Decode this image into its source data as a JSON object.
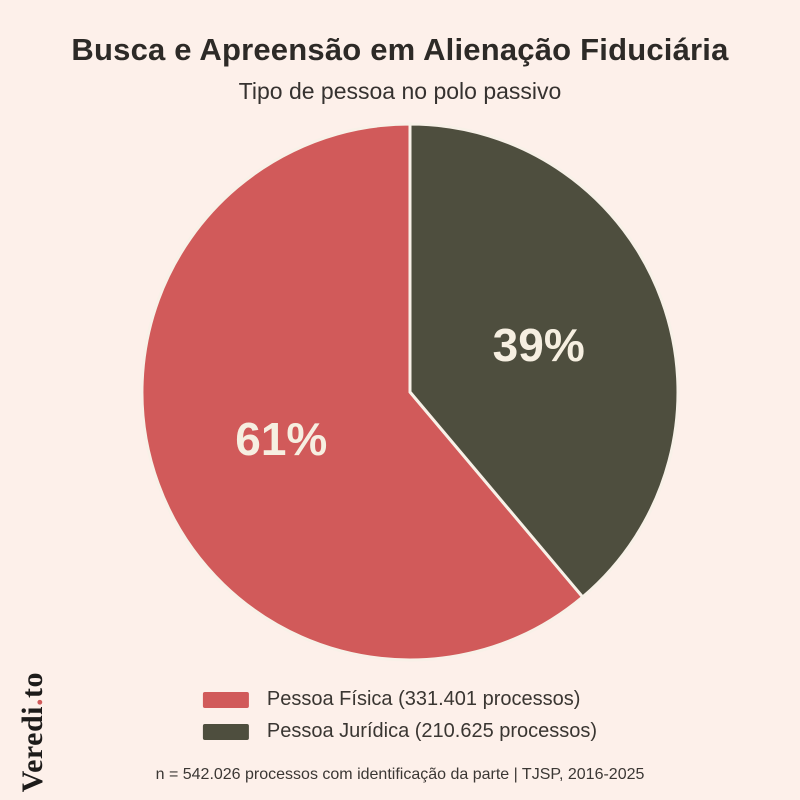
{
  "header": {
    "title": "Busca e Apreensão em Alienação Fiduciária",
    "subtitle": "Tipo de pessoa no polo passivo"
  },
  "chart_data": {
    "type": "pie",
    "title": "Busca e Apreensão em Alienação Fiduciária",
    "subtitle": "Tipo de pessoa no polo passivo",
    "start_angle": "north",
    "direction": "counterclockwise",
    "legend_position": "bottom",
    "slices": [
      {
        "label": "Pessoa Física",
        "value": 331401,
        "pct": 61,
        "pct_label": "61%",
        "legend_label": "Pessoa Física (331.401 processos)",
        "color": "#d15a5a"
      },
      {
        "label": "Pessoa Jurídica",
        "value": 210625,
        "pct": 39,
        "pct_label": "39%",
        "legend_label": "Pessoa Jurídica (210.625 processos)",
        "color": "#4e4e3e"
      }
    ]
  },
  "footer": {
    "note": "n = 542.026 processos com identificação da parte | TJSP, 2016-2025"
  },
  "branding": {
    "name_part1": "Veredi",
    "dot": ".",
    "name_part2": "to",
    "dot_color": "#d15a5a"
  },
  "colors": {
    "background": "#fdf0ea",
    "slice_stroke": "#f8f1e8",
    "slice_label": "#f6efe1",
    "title_text": "#2d2a27",
    "body_text": "#3a3632"
  }
}
